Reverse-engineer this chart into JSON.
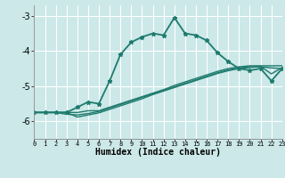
{
  "xlabel": "Humidex (Indice chaleur)",
  "xlim": [
    0,
    23
  ],
  "ylim": [
    -6.5,
    -2.7
  ],
  "yticks": [
    -6,
    -5,
    -4,
    -3
  ],
  "xticks": [
    0,
    1,
    2,
    3,
    4,
    5,
    6,
    7,
    8,
    9,
    10,
    11,
    12,
    13,
    14,
    15,
    16,
    17,
    18,
    19,
    20,
    21,
    22,
    23
  ],
  "bg_color": "#cce8e8",
  "line_color": "#1e7b6e",
  "grid_color": "#ffffff",
  "series": [
    {
      "x": [
        0,
        1,
        2,
        3,
        4,
        5,
        6,
        7,
        8,
        9,
        10,
        11,
        12,
        13,
        14,
        15,
        16,
        17,
        18,
        19,
        20,
        21,
        22,
        23
      ],
      "y": [
        -5.75,
        -5.75,
        -5.75,
        -5.75,
        -5.6,
        -5.45,
        -5.5,
        -4.85,
        -4.1,
        -3.75,
        -3.6,
        -3.5,
        -3.55,
        -3.05,
        -3.5,
        -3.55,
        -3.7,
        -4.05,
        -4.3,
        -4.5,
        -4.55,
        -4.5,
        -4.85,
        -4.5
      ],
      "marker": true,
      "lw": 1.3
    },
    {
      "x": [
        0,
        1,
        2,
        3,
        4,
        5,
        6,
        7,
        8,
        9,
        10,
        11,
        12,
        13,
        14,
        15,
        16,
        17,
        18,
        19,
        20,
        21,
        22,
        23
      ],
      "y": [
        -5.75,
        -5.75,
        -5.75,
        -5.75,
        -5.75,
        -5.7,
        -5.7,
        -5.6,
        -5.5,
        -5.4,
        -5.3,
        -5.2,
        -5.1,
        -4.98,
        -4.88,
        -4.78,
        -4.68,
        -4.58,
        -4.5,
        -4.45,
        -4.42,
        -4.42,
        -4.42,
        -4.42
      ],
      "marker": false,
      "lw": 1.0
    },
    {
      "x": [
        0,
        1,
        2,
        3,
        4,
        5,
        6,
        7,
        8,
        9,
        10,
        11,
        12,
        13,
        14,
        15,
        16,
        17,
        18,
        19,
        20,
        21,
        22,
        23
      ],
      "y": [
        -5.75,
        -5.75,
        -5.75,
        -5.8,
        -5.82,
        -5.78,
        -5.72,
        -5.62,
        -5.52,
        -5.42,
        -5.32,
        -5.22,
        -5.12,
        -5.02,
        -4.92,
        -4.82,
        -4.72,
        -4.62,
        -4.54,
        -4.48,
        -4.45,
        -4.45,
        -4.48,
        -4.5
      ],
      "marker": false,
      "lw": 1.0
    },
    {
      "x": [
        0,
        1,
        2,
        3,
        4,
        5,
        6,
        7,
        8,
        9,
        10,
        11,
        12,
        13,
        14,
        15,
        16,
        17,
        18,
        19,
        20,
        21,
        22,
        23
      ],
      "y": [
        -5.75,
        -5.75,
        -5.75,
        -5.75,
        -5.88,
        -5.82,
        -5.76,
        -5.66,
        -5.56,
        -5.46,
        -5.36,
        -5.24,
        -5.14,
        -5.04,
        -4.94,
        -4.84,
        -4.74,
        -4.64,
        -4.56,
        -4.5,
        -4.47,
        -4.44,
        -4.65,
        -4.47
      ],
      "marker": false,
      "lw": 1.0
    }
  ]
}
